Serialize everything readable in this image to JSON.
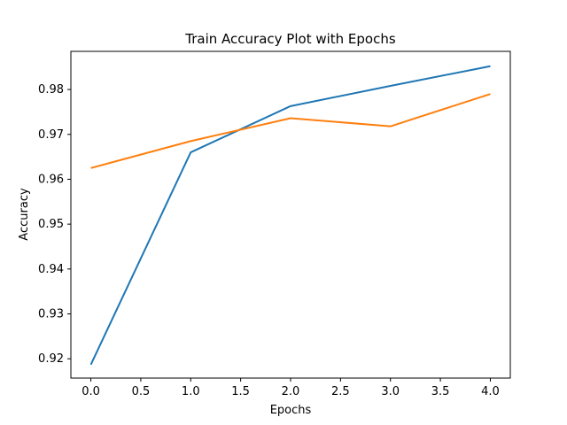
{
  "chart_data": {
    "type": "line",
    "title": "Train Accuracy Plot with Epochs",
    "xlabel": "Epochs",
    "ylabel": "Accuracy",
    "xlim": [
      -0.2,
      4.2
    ],
    "ylim": [
      0.9157,
      0.9885
    ],
    "x": [
      0,
      1,
      2,
      3,
      4
    ],
    "x_ticks": [
      0.0,
      0.5,
      1.0,
      1.5,
      2.0,
      2.5,
      3.0,
      3.5,
      4.0
    ],
    "x_tick_labels": [
      "0.0",
      "0.5",
      "1.0",
      "1.5",
      "2.0",
      "2.5",
      "3.0",
      "3.5",
      "4.0"
    ],
    "y_ticks": [
      0.92,
      0.93,
      0.94,
      0.95,
      0.96,
      0.97,
      0.98
    ],
    "y_tick_labels": [
      "0.92",
      "0.93",
      "0.94",
      "0.95",
      "0.96",
      "0.97",
      "0.98"
    ],
    "grid": false,
    "series": [
      {
        "color": "#1f77b4",
        "values": [
          0.9187,
          0.966,
          0.9763,
          0.9808,
          0.9852
        ]
      },
      {
        "color": "#ff7f0e",
        "values": [
          0.9625,
          0.9685,
          0.9736,
          0.9718,
          0.979
        ]
      }
    ]
  }
}
